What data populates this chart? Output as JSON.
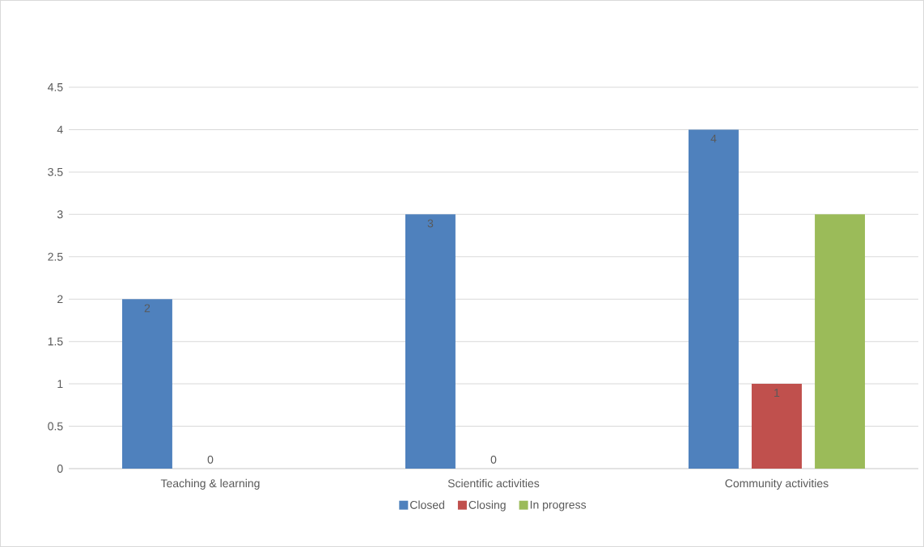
{
  "chart_data": {
    "type": "bar",
    "categories": [
      "Teaching & learning",
      "Scientific activities",
      "Community activities"
    ],
    "series": [
      {
        "name": "Closed",
        "color": "#4f81bd",
        "values": [
          2,
          3,
          4
        ],
        "value_labels": [
          "2",
          "3",
          "4"
        ]
      },
      {
        "name": "Closing",
        "color": "#c0504d",
        "values": [
          0,
          0,
          1
        ],
        "value_labels": [
          "0",
          "0",
          "1"
        ]
      },
      {
        "name": "In progress",
        "color": "#9bbb59",
        "values": [
          null,
          null,
          3
        ],
        "value_labels": [
          null,
          null,
          null
        ]
      }
    ],
    "ylim": [
      0,
      4.5
    ],
    "yticks": [
      0,
      0.5,
      1,
      1.5,
      2,
      2.5,
      3,
      3.5,
      4,
      4.5
    ],
    "grid": "y",
    "legend": "bottom"
  }
}
